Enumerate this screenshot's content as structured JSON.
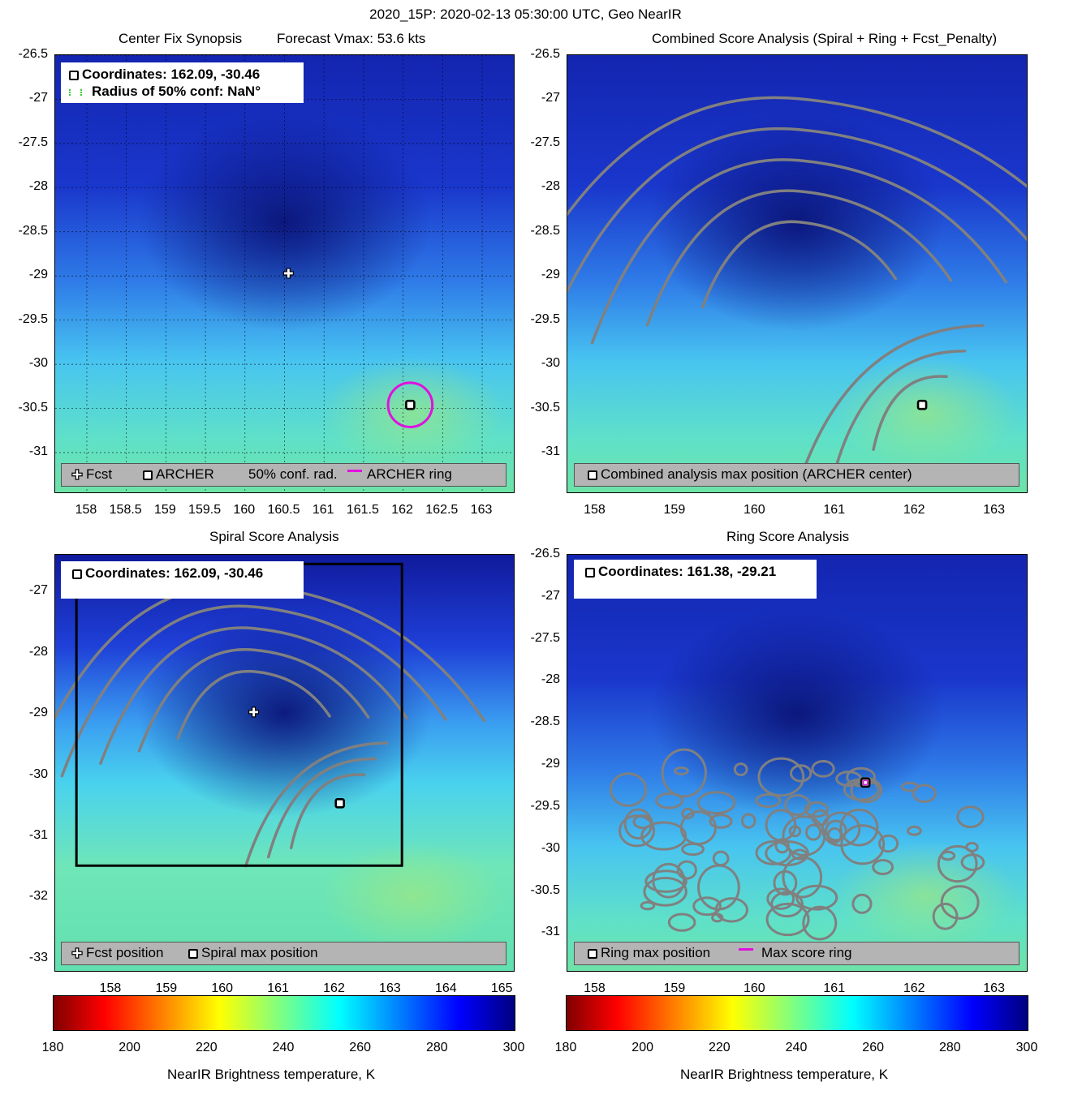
{
  "figure": {
    "suptitle": "2020_15P: 2020-02-13 05:30:00 UTC, Geo NearIR"
  },
  "colors": {
    "ring": "#e010e0",
    "contour": "#808080",
    "box": "#000000",
    "legend_bg": "#b4b4b4"
  },
  "chart_data": [
    {
      "id": "center-fix",
      "type": "heatmap",
      "title": "Center Fix Synopsis",
      "subtitle": "Forecast Vmax: 53.6 kts",
      "xlim": [
        157.6,
        163.4
      ],
      "ylim": [
        -31.45,
        -26.5
      ],
      "xticks": [
        158,
        158.5,
        159,
        159.5,
        160,
        160.5,
        161,
        161.5,
        162,
        162.5,
        163
      ],
      "yticks": [
        -26.5,
        -27,
        -27.5,
        -28,
        -28.5,
        -29,
        -29.5,
        -30,
        -30.5,
        -31
      ],
      "grid": true,
      "info": [
        "Coordinates: 162.09, -30.46",
        "Radius of 50% conf: NaN°"
      ],
      "legend": [
        "Fcst",
        "ARCHER",
        "50% conf. rad.",
        "ARCHER ring"
      ],
      "points": {
        "forecast": [
          160.55,
          -28.97
        ],
        "archer": [
          162.09,
          -30.46
        ]
      },
      "ring": {
        "center": [
          162.09,
          -30.46
        ],
        "radius_deg": 0.28
      }
    },
    {
      "id": "combined-score",
      "type": "heatmap",
      "title": "Combined Score Analysis (Spiral + Ring + Fcst_Penalty)",
      "xlim": [
        157.65,
        163.4
      ],
      "ylim": [
        -31.45,
        -26.5
      ],
      "xticks": [
        158,
        159,
        160,
        161,
        162,
        163
      ],
      "yticks": [
        -26.5,
        -27,
        -27.5,
        -28,
        -28.5,
        -29,
        -29.5,
        -30,
        -30.5,
        -31
      ],
      "legend": [
        "Combined analysis max position (ARCHER center)"
      ],
      "points": {
        "max": [
          162.09,
          -30.46
        ]
      }
    },
    {
      "id": "spiral-score",
      "type": "heatmap",
      "title": "Spiral Score Analysis",
      "xlim": [
        157.0,
        165.2
      ],
      "ylim": [
        -33.2,
        -26.4
      ],
      "xticks": [
        158,
        159,
        160,
        161,
        162,
        163,
        164,
        165
      ],
      "yticks": [
        -27,
        -28,
        -29,
        -30,
        -31,
        -32,
        -33
      ],
      "info": [
        "Coordinates: 162.09, -30.46"
      ],
      "legend": [
        "Fcst position",
        "Spiral max position"
      ],
      "points": {
        "forecast": [
          160.55,
          -28.97
        ],
        "spiral_max": [
          162.09,
          -30.46
        ]
      },
      "box": {
        "x": [
          157.38,
          163.2
        ],
        "y": [
          -31.48,
          -26.55
        ]
      }
    },
    {
      "id": "ring-score",
      "type": "heatmap",
      "title": "Ring Score Analysis",
      "xlim": [
        157.65,
        163.4
      ],
      "ylim": [
        -31.45,
        -26.5
      ],
      "xticks": [
        158,
        159,
        160,
        161,
        162,
        163
      ],
      "yticks": [
        -26.5,
        -27,
        -27.5,
        -28,
        -28.5,
        -29,
        -29.5,
        -30,
        -30.5,
        -31
      ],
      "info": [
        "Coordinates: 161.38, -29.21"
      ],
      "legend": [
        "Ring max position",
        "Max score ring"
      ],
      "points": {
        "ring_max": [
          161.38,
          -29.21
        ]
      }
    }
  ],
  "colorbars": [
    {
      "range": [
        180,
        300
      ],
      "ticks": [
        180,
        200,
        220,
        240,
        260,
        280,
        300
      ],
      "label": "NearIR Brightness temperature, K"
    },
    {
      "range": [
        180,
        300
      ],
      "ticks": [
        180,
        200,
        220,
        240,
        260,
        280,
        300
      ],
      "label": "NearIR Brightness temperature, K"
    }
  ]
}
